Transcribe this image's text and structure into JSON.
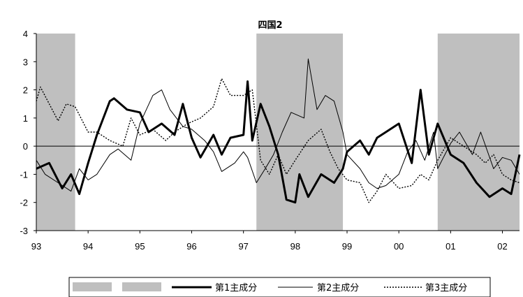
{
  "chart_data": {
    "type": "line",
    "title": "四国2",
    "xlabel": "",
    "ylabel": "",
    "ylim": [
      -3,
      4
    ],
    "y_ticks": [
      "4",
      "3",
      "2",
      "1",
      "0",
      "-1",
      "-2",
      "-3"
    ],
    "y_tick_values": [
      4,
      3,
      2,
      1,
      0,
      -1,
      -2,
      -3
    ],
    "xlim": [
      1993.0,
      2002.33
    ],
    "x_ticks": [
      "93",
      "94",
      "95",
      "96",
      "97",
      "98",
      "99",
      "00",
      "01",
      "02"
    ],
    "x_tick_values": [
      1993,
      1994,
      1995,
      1996,
      1997,
      1998,
      1999,
      2000,
      2001,
      2002
    ],
    "recession_bands": [
      {
        "start": 1993.0,
        "end": 1993.75
      },
      {
        "start": 1997.25,
        "end": 1998.92
      },
      {
        "start": 2000.75,
        "end": 2002.33
      }
    ],
    "grid": false,
    "legend_position": "bottom",
    "legend": {
      "shade_labels": [
        "",
        ""
      ],
      "series_labels": [
        "第1主成分",
        "第2主成分",
        "第3主成分"
      ]
    },
    "series": [
      {
        "name": "第1主成分",
        "style": "thick-solid",
        "x": [
          1993.0,
          1993.25,
          1993.5,
          1993.67,
          1993.83,
          1994.0,
          1994.17,
          1994.42,
          1994.5,
          1994.75,
          1995.0,
          1995.17,
          1995.42,
          1995.67,
          1995.83,
          1996.0,
          1996.17,
          1996.42,
          1996.58,
          1996.75,
          1997.0,
          1997.08,
          1997.17,
          1997.33,
          1997.5,
          1997.67,
          1997.83,
          1998.0,
          1998.08,
          1998.25,
          1998.5,
          1998.75,
          1998.92,
          1999.0,
          1999.25,
          1999.42,
          1999.58,
          1999.75,
          2000.0,
          2000.25,
          2000.42,
          2000.58,
          2000.75,
          2001.0,
          2001.25,
          2001.5,
          2001.75,
          2002.0,
          2002.17,
          2002.33
        ],
        "values": [
          -0.8,
          -0.6,
          -1.5,
          -1.0,
          -1.7,
          -0.6,
          0.4,
          1.6,
          1.7,
          1.3,
          1.2,
          0.5,
          0.8,
          0.4,
          1.5,
          0.3,
          -0.4,
          0.4,
          -0.3,
          0.3,
          0.4,
          2.3,
          0.2,
          1.5,
          0.7,
          -0.3,
          -1.9,
          -2.0,
          -1.0,
          -1.8,
          -1.0,
          -1.3,
          -0.8,
          -0.2,
          0.2,
          -0.3,
          0.3,
          0.5,
          0.8,
          -0.6,
          2.0,
          -0.3,
          0.8,
          -0.3,
          -0.6,
          -1.3,
          -1.8,
          -1.5,
          -1.7,
          -0.3
        ]
      },
      {
        "name": "第2主成分",
        "style": "thin-solid",
        "x": [
          1993.0,
          1993.17,
          1993.42,
          1993.67,
          1993.83,
          1994.0,
          1994.17,
          1994.42,
          1994.58,
          1994.83,
          1995.0,
          1995.25,
          1995.42,
          1995.58,
          1995.83,
          1996.0,
          1996.25,
          1996.42,
          1996.58,
          1996.83,
          1997.0,
          1997.08,
          1997.25,
          1997.42,
          1997.58,
          1997.75,
          1997.92,
          1998.17,
          1998.25,
          1998.42,
          1998.58,
          1998.75,
          1998.92,
          1999.0,
          1999.25,
          1999.42,
          1999.58,
          1999.75,
          2000.0,
          2000.17,
          2000.33,
          2000.5,
          2000.67,
          2000.75,
          2001.0,
          2001.17,
          2001.42,
          2001.58,
          2001.83,
          2002.0,
          2002.17,
          2002.33
        ],
        "values": [
          -0.5,
          -1.0,
          -1.3,
          -1.6,
          -0.8,
          -1.2,
          -1.0,
          -0.3,
          -0.1,
          -0.5,
          0.8,
          1.8,
          2.0,
          1.3,
          0.7,
          0.6,
          0.2,
          -0.2,
          -0.9,
          -0.6,
          -0.2,
          -0.4,
          -1.3,
          -0.8,
          -0.3,
          0.5,
          1.2,
          1.0,
          3.1,
          1.3,
          1.8,
          1.6,
          0.5,
          -0.3,
          -0.8,
          -1.3,
          -1.5,
          -1.4,
          -1.0,
          -0.2,
          0.2,
          -0.5,
          0.5,
          -0.8,
          0.1,
          0.5,
          -0.3,
          0.5,
          -0.8,
          -0.4,
          -0.5,
          -1.0
        ]
      },
      {
        "name": "第3主成分",
        "style": "dotted",
        "x": [
          1993.0,
          1993.08,
          1993.25,
          1993.42,
          1993.58,
          1993.75,
          1994.0,
          1994.17,
          1994.42,
          1994.67,
          1994.83,
          1995.0,
          1995.25,
          1995.5,
          1995.67,
          1995.92,
          1996.17,
          1996.42,
          1996.58,
          1996.75,
          1997.0,
          1997.17,
          1997.33,
          1997.5,
          1997.67,
          1997.83,
          1998.0,
          1998.25,
          1998.5,
          1998.67,
          1998.83,
          1999.0,
          1999.25,
          1999.42,
          1999.58,
          1999.75,
          2000.0,
          2000.25,
          2000.42,
          2000.58,
          2000.75,
          2001.0,
          2001.25,
          2001.5,
          2001.67,
          2001.83,
          2002.0,
          2002.17,
          2002.33
        ],
        "values": [
          1.6,
          2.1,
          1.5,
          0.9,
          1.5,
          1.4,
          0.5,
          0.5,
          0.2,
          0.0,
          1.0,
          0.4,
          0.6,
          0.2,
          0.5,
          0.8,
          1.0,
          1.4,
          2.4,
          1.8,
          1.8,
          2.0,
          -0.5,
          -1.0,
          -0.3,
          -1.0,
          -0.5,
          0.2,
          0.6,
          -0.2,
          -0.8,
          -1.2,
          -1.3,
          -2.0,
          -1.6,
          -1.0,
          -1.5,
          -1.4,
          -1.0,
          -1.2,
          -0.5,
          0.3,
          0.0,
          -0.3,
          -0.6,
          -0.3,
          -1.0,
          -1.2,
          -1.3
        ]
      }
    ]
  }
}
